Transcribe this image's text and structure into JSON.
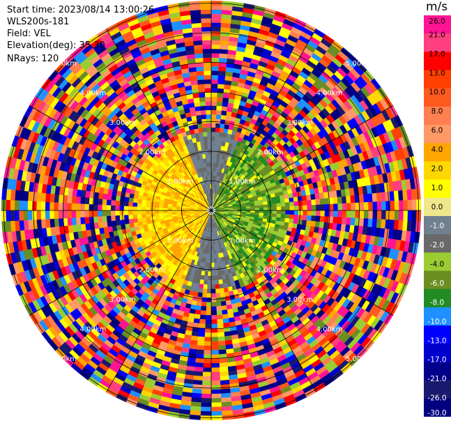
{
  "header": {
    "start_time": "Start time: 2023/08/14 13:00:26",
    "instrument": "WLS200s-181",
    "field": "Field: VEL",
    "elevation": "Elevation(deg): 35.30",
    "nrays": "NRays: 120"
  },
  "ring_labels": [
    "1.00km",
    "2.00km",
    "3.00km",
    "4.00km",
    "5.00km"
  ],
  "colorbar": {
    "unit": "m/s",
    "ticks": [
      "26.0",
      "21.0",
      "17.0",
      "13.0",
      "10.0",
      "8.0",
      "6.0",
      "4.0",
      "2.0",
      "1.0",
      "0.0",
      "-1.0",
      "-2.0",
      "-4.0",
      "-6.0",
      "-8.0",
      "-10.0",
      "-13.0",
      "-17.0",
      "-21.0",
      "-26.0",
      "-30.0"
    ],
    "colors": [
      "#ff1493",
      "#ff3f7f",
      "#ff0000",
      "#ff4000",
      "#ff5a1e",
      "#ff7f50",
      "#ff9966",
      "#ffa500",
      "#ffd700",
      "#ffff00",
      "#f0e68c",
      "#708090",
      "#696969",
      "#9acd32",
      "#6b8e23",
      "#228b22",
      "#1e90ff",
      "#0000ff",
      "#0000cd",
      "#00008b",
      "#191970",
      "#000080"
    ]
  }
}
